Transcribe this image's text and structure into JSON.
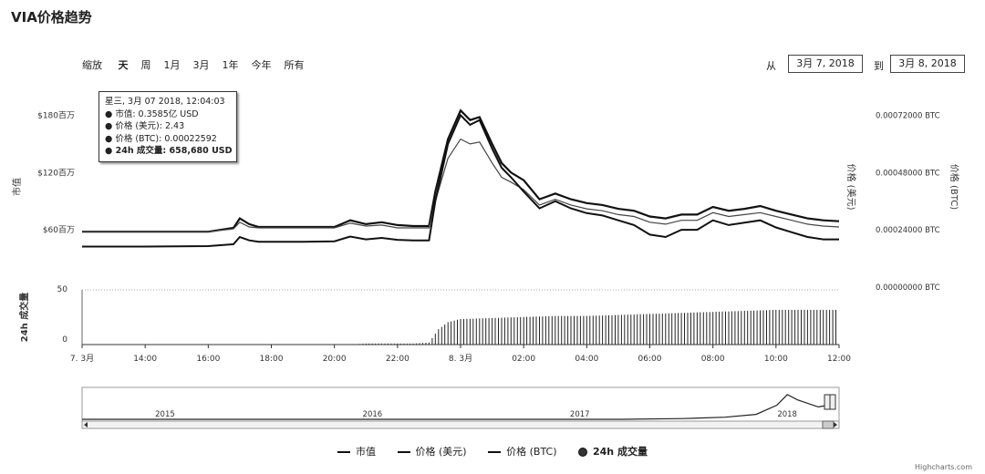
{
  "page_title": "VIA价格趋势",
  "zoom": {
    "label": "缩放",
    "buttons": [
      "天",
      "周",
      "1月",
      "3月",
      "1年",
      "今年",
      "所有"
    ],
    "selected": "天"
  },
  "range": {
    "from_label": "从",
    "from_value": "3月 7, 2018",
    "to_label": "到",
    "to_value": "3月 8, 2018"
  },
  "tooltip": {
    "date": "星三, 3月 07 2018, 12:04:03",
    "rows": [
      "市值: 0.3585亿 USD",
      "价格 (美元): 2.43",
      "价格 (BTC): 0.00022592",
      "24h 成交量: 658,680 USD"
    ]
  },
  "credit": "Highcharts.com",
  "chart_data": {
    "type": "line",
    "x_ticks": [
      "7. 3月",
      "14:00",
      "16:00",
      "18:00",
      "20:00",
      "22:00",
      "8. 3月",
      "02:00",
      "04:00",
      "06:00",
      "08:00",
      "10:00",
      "12:00"
    ],
    "x_range_hours": [
      12,
      36
    ],
    "left_axis": {
      "title": "市值",
      "ticks": [
        "$60百万",
        "$120百万",
        "$180百万"
      ],
      "range": [
        0,
        210
      ]
    },
    "right_axis_1": {
      "title": "价格 (美元)"
    },
    "right_axis_2": {
      "title": "价格 (BTC)",
      "ticks": [
        "0.00000000 BTC",
        "0.00024000 BTC",
        "0.00048000 BTC",
        "0.00072000 BTC"
      ],
      "range": [
        0,
        0.00084
      ]
    },
    "volume_axis": {
      "title": "24h 成交量",
      "ticks": [
        "0",
        "50"
      ],
      "range": [
        0,
        50
      ]
    },
    "series": [
      {
        "name": "市值",
        "x": [
          12,
          14,
          16,
          16.8,
          17,
          17.3,
          17.6,
          18,
          19,
          20,
          20.5,
          21,
          21.5,
          22,
          22.5,
          23,
          23.2,
          23.6,
          24,
          24.3,
          24.6,
          25,
          25.3,
          25.6,
          26,
          26.5,
          27,
          27.5,
          28,
          28.5,
          29,
          29.5,
          30,
          30.5,
          31,
          31.5,
          32,
          32.5,
          33,
          33.5,
          34,
          34.5,
          35,
          35.5,
          36
        ],
        "values": [
          58,
          58,
          58,
          62,
          72,
          66,
          63,
          63,
          63,
          63,
          70,
          66,
          68,
          65,
          64,
          64,
          100,
          155,
          185,
          175,
          178,
          150,
          130,
          120,
          112,
          92,
          98,
          92,
          88,
          86,
          82,
          80,
          74,
          72,
          76,
          76,
          84,
          80,
          82,
          85,
          80,
          76,
          72,
          70,
          69
        ]
      },
      {
        "name": "价格 (美元)",
        "x": [
          12,
          14,
          16,
          16.8,
          17,
          17.3,
          17.6,
          18,
          19,
          20,
          20.5,
          21,
          21.5,
          22,
          22.5,
          23,
          23.2,
          23.6,
          24,
          24.3,
          24.6,
          25,
          25.3,
          25.6,
          26,
          26.5,
          27,
          27.5,
          28,
          28.5,
          29,
          29.5,
          30,
          30.5,
          31,
          31.5,
          32,
          32.5,
          33,
          33.5,
          34,
          34.5,
          35,
          35.5,
          36
        ],
        "values": [
          58,
          58,
          58,
          61,
          68,
          63,
          62,
          62,
          62,
          62,
          67,
          64,
          65,
          62,
          62,
          62,
          90,
          135,
          155,
          150,
          152,
          130,
          115,
          110,
          102,
          86,
          92,
          86,
          82,
          80,
          76,
          74,
          68,
          66,
          70,
          70,
          78,
          74,
          76,
          78,
          74,
          70,
          66,
          64,
          63
        ]
      },
      {
        "name": "价格 (BTC)",
        "x": [
          12,
          14,
          16,
          16.8,
          17,
          17.3,
          17.6,
          18,
          19,
          20,
          20.5,
          21,
          21.5,
          22,
          22.5,
          23,
          23.2,
          23.6,
          24,
          24.3,
          24.6,
          25,
          25.3,
          25.6,
          26,
          26.5,
          27,
          27.5,
          28,
          28.5,
          29,
          29.5,
          30,
          30.5,
          31,
          31.5,
          32,
          32.5,
          33,
          33.5,
          34,
          34.5,
          35,
          35.5,
          36
        ],
        "values": [
          0.00017,
          0.00017,
          0.000172,
          0.00018,
          0.00021,
          0.000196,
          0.00019,
          0.00019,
          0.00019,
          0.000192,
          0.000212,
          0.0002,
          0.000206,
          0.000198,
          0.000196,
          0.000196,
          0.00036,
          0.0006,
          0.00072,
          0.00068,
          0.0007,
          0.00058,
          0.0005,
          0.00046,
          0.0004,
          0.00033,
          0.00036,
          0.00033,
          0.00031,
          0.0003,
          0.00028,
          0.00026,
          0.00022,
          0.00021,
          0.00024,
          0.00024,
          0.00028,
          0.00026,
          0.00027,
          0.00028,
          0.00025,
          0.00023,
          0.00021,
          0.0002,
          0.0002
        ]
      },
      {
        "name": "24h 成交量",
        "x": [
          12,
          20.5,
          21,
          22,
          22.5,
          23,
          23.3,
          23.6,
          24,
          25,
          26,
          27,
          28,
          29,
          30,
          31,
          32,
          33,
          34,
          35,
          36
        ],
        "values": [
          0,
          0,
          1,
          1,
          1,
          2,
          15,
          22,
          25,
          26,
          27,
          28,
          28,
          29,
          30,
          31,
          32,
          33,
          34,
          34,
          34
        ]
      }
    ],
    "navigator": {
      "labels": [
        "2015",
        "2016",
        "2017",
        "2018"
      ],
      "x": [
        2014.6,
        2016.8,
        2017.2,
        2017.5,
        2017.7,
        2017.85,
        2017.95,
        2018.0,
        2018.05,
        2018.1,
        2018.15,
        2018.2
      ],
      "values": [
        0,
        0,
        0,
        2,
        6,
        14,
        40,
        70,
        55,
        45,
        35,
        40
      ],
      "range": [
        2014.6,
        2018.25
      ]
    }
  }
}
